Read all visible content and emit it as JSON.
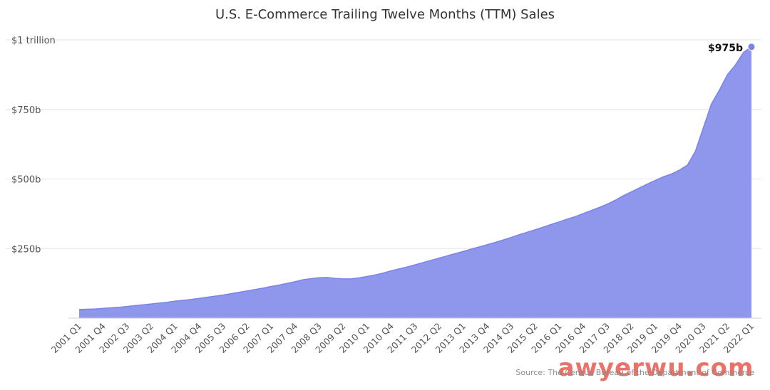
{
  "chart_data": {
    "type": "area",
    "title": "U.S. E-Commerce Trailing Twelve Months (TTM) Sales",
    "source": "Source: The Census Bureau of the Department of Commerce",
    "watermark": "awyerwu.com",
    "ylim": [
      0,
      1000
    ],
    "yticks": [
      {
        "value": 250,
        "label": "$250b"
      },
      {
        "value": 500,
        "label": "$500b"
      },
      {
        "value": 750,
        "label": "$750b"
      },
      {
        "value": 1000,
        "label": "$1 trillion"
      }
    ],
    "x_tick_labels": [
      "2001 Q1",
      "2001 Q4",
      "2002 Q3",
      "2003 Q2",
      "2004 Q1",
      "2004 Q4",
      "2005 Q3",
      "2006 Q2",
      "2007 Q1",
      "2007 Q4",
      "2008 Q3",
      "2009 Q2",
      "2010 Q1",
      "2010 Q4",
      "2011 Q3",
      "2012 Q2",
      "2013 Q1",
      "2013 Q4",
      "2014 Q3",
      "2015 Q2",
      "2016 Q1",
      "2016 Q4",
      "2017 Q3",
      "2018 Q2",
      "2019 Q1",
      "2019 Q4",
      "2020 Q3",
      "2021 Q2",
      "2022 Q1"
    ],
    "series": [
      {
        "color": "#8f97ed",
        "line_color": "#7a83e6",
        "x": [
          "2001 Q1",
          "2001 Q2",
          "2001 Q3",
          "2001 Q4",
          "2002 Q1",
          "2002 Q2",
          "2002 Q3",
          "2002 Q4",
          "2003 Q1",
          "2003 Q2",
          "2003 Q3",
          "2003 Q4",
          "2004 Q1",
          "2004 Q2",
          "2004 Q3",
          "2004 Q4",
          "2005 Q1",
          "2005 Q2",
          "2005 Q3",
          "2005 Q4",
          "2006 Q1",
          "2006 Q2",
          "2006 Q3",
          "2006 Q4",
          "2007 Q1",
          "2007 Q2",
          "2007 Q3",
          "2007 Q4",
          "2008 Q1",
          "2008 Q2",
          "2008 Q3",
          "2008 Q4",
          "2009 Q1",
          "2009 Q2",
          "2009 Q3",
          "2009 Q4",
          "2010 Q1",
          "2010 Q2",
          "2010 Q3",
          "2010 Q4",
          "2011 Q1",
          "2011 Q2",
          "2011 Q3",
          "2011 Q4",
          "2012 Q1",
          "2012 Q2",
          "2012 Q3",
          "2012 Q4",
          "2013 Q1",
          "2013 Q2",
          "2013 Q3",
          "2013 Q4",
          "2014 Q1",
          "2014 Q2",
          "2014 Q3",
          "2014 Q4",
          "2015 Q1",
          "2015 Q2",
          "2015 Q3",
          "2015 Q4",
          "2016 Q1",
          "2016 Q2",
          "2016 Q3",
          "2016 Q4",
          "2017 Q1",
          "2017 Q2",
          "2017 Q3",
          "2017 Q4",
          "2018 Q1",
          "2018 Q2",
          "2018 Q3",
          "2018 Q4",
          "2019 Q1",
          "2019 Q2",
          "2019 Q3",
          "2019 Q4",
          "2020 Q1",
          "2020 Q2",
          "2020 Q3",
          "2020 Q4",
          "2021 Q1",
          "2021 Q2",
          "2021 Q3",
          "2021 Q4",
          "2022 Q1"
        ],
        "values": [
          31,
          32,
          33,
          35,
          37,
          39,
          42,
          45,
          48,
          51,
          54,
          57,
          61,
          64,
          67,
          71,
          75,
          79,
          83,
          88,
          93,
          98,
          103,
          108,
          114,
          119,
          125,
          131,
          138,
          142,
          145,
          146,
          143,
          141,
          141,
          145,
          150,
          155,
          162,
          170,
          177,
          184,
          192,
          200,
          208,
          216,
          224,
          232,
          240,
          248,
          256,
          264,
          272,
          281,
          290,
          300,
          309,
          318,
          327,
          337,
          346,
          356,
          365,
          376,
          387,
          398,
          410,
          424,
          440,
          454,
          468,
          482,
          495,
          508,
          518,
          532,
          550,
          600,
          685,
          770,
          820,
          875,
          910,
          955,
          975
        ]
      }
    ],
    "annotations": [
      {
        "x": "2022 Q1",
        "value": 975,
        "label": "$975b"
      }
    ]
  }
}
